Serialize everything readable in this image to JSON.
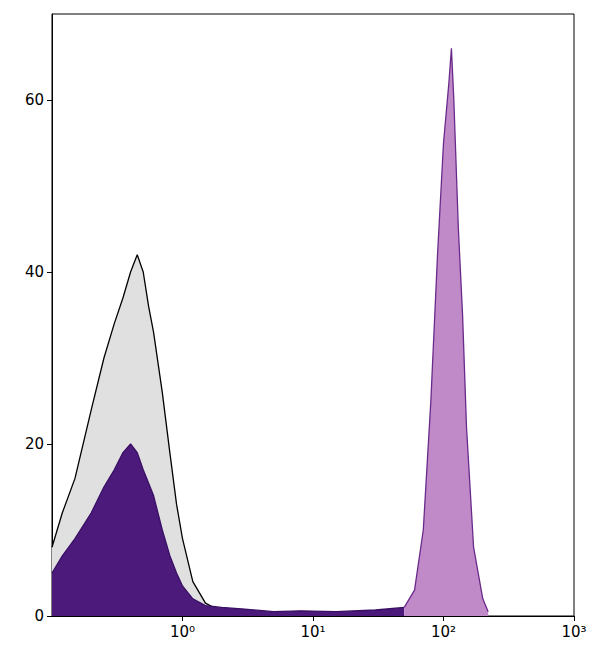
{
  "chart_data": {
    "type": "area",
    "log": "x",
    "grid": false,
    "xlim": [
      0.1,
      1000
    ],
    "xticks": [
      {
        "value": 1,
        "label": "10⁰"
      },
      {
        "value": 10,
        "label": "10¹"
      },
      {
        "value": 100,
        "label": "10²"
      },
      {
        "value": 1000,
        "label": "10³"
      }
    ],
    "ylim": [
      0,
      70
    ],
    "yticks": [
      0,
      20,
      40,
      60
    ],
    "series": [
      {
        "color": "#e0e0e0",
        "x": [
          0.1,
          0.12,
          0.15,
          0.2,
          0.25,
          0.3,
          0.35,
          0.4,
          0.45,
          0.5,
          0.55,
          0.6,
          0.7,
          0.8,
          0.9,
          1.0,
          1.2,
          1.5,
          2,
          3
        ],
        "values": [
          8,
          12,
          16,
          24,
          30,
          34,
          37,
          40,
          42,
          40,
          36,
          33,
          26,
          19,
          13,
          9,
          4,
          1.5,
          0.5,
          0.2
        ]
      },
      {
        "color": "#4b1a7a",
        "x": [
          0.1,
          0.12,
          0.15,
          0.2,
          0.25,
          0.3,
          0.35,
          0.4,
          0.45,
          0.5,
          0.6,
          0.7,
          0.8,
          0.9,
          1.0,
          1.2,
          1.5,
          2,
          3,
          5,
          8,
          15,
          30,
          50
        ],
        "values": [
          5,
          7,
          9,
          12,
          15,
          17,
          19,
          20,
          19,
          17,
          14,
          10,
          7,
          5,
          3.5,
          2,
          1.2,
          1,
          0.8,
          0.5,
          0.6,
          0.5,
          0.7,
          1
        ]
      },
      {
        "color": "#c08ac8",
        "x": [
          50,
          60,
          70,
          80,
          90,
          100,
          110,
          115,
          120,
          130,
          140,
          150,
          170,
          200,
          220
        ],
        "values": [
          1,
          3,
          10,
          25,
          42,
          55,
          62,
          66,
          60,
          45,
          35,
          22,
          8,
          2,
          0.5
        ]
      }
    ]
  }
}
